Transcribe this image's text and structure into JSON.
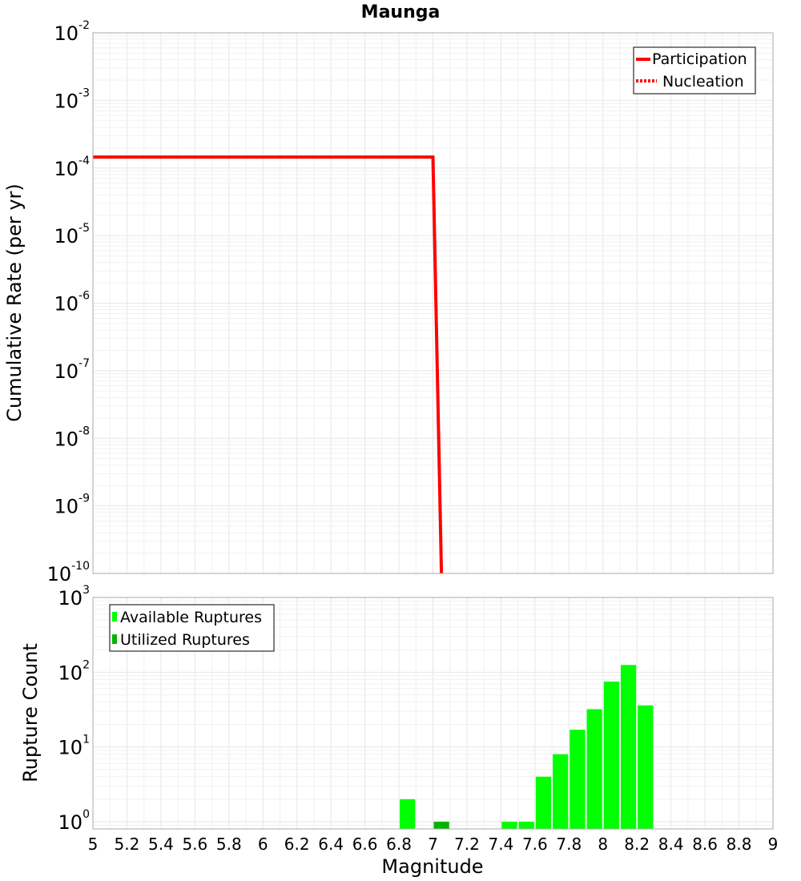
{
  "chart_data": [
    {
      "type": "line",
      "title": "Maunga",
      "xlabel": "",
      "ylabel": "Cumulative Rate (per yr)",
      "yscale": "log",
      "xlim": [
        5,
        9
      ],
      "ylim": [
        1e-10,
        0.01
      ],
      "y_ticks": [
        {
          "base": "10",
          "exp": "-2",
          "value": 0.01
        },
        {
          "base": "10",
          "exp": "-3",
          "value": 0.001
        },
        {
          "base": "10",
          "exp": "-4",
          "value": 0.0001
        },
        {
          "base": "10",
          "exp": "-5",
          "value": 1e-05
        },
        {
          "base": "10",
          "exp": "-6",
          "value": 1e-06
        },
        {
          "base": "10",
          "exp": "-7",
          "value": 1e-07
        },
        {
          "base": "10",
          "exp": "-8",
          "value": 1e-08
        },
        {
          "base": "10",
          "exp": "-9",
          "value": 1e-09
        },
        {
          "base": "10",
          "exp": "-10",
          "value": 1e-10
        }
      ],
      "legend_position": "top-right",
      "series": [
        {
          "name": "Participation",
          "style": "solid",
          "color": "#ff0000",
          "x": [
            5.0,
            7.0,
            7.05
          ],
          "y": [
            0.000145,
            0.000145,
            1e-10
          ]
        },
        {
          "name": "Nucleation",
          "style": "dotted",
          "color": "#ff0000",
          "x": [
            5.0,
            7.0,
            7.05
          ],
          "y": [
            0.000145,
            0.000145,
            1e-10
          ]
        }
      ]
    },
    {
      "type": "bar",
      "xlabel": "Magnitude",
      "ylabel": "Rupture Count",
      "yscale": "log",
      "xlim": [
        5,
        9
      ],
      "ylim": [
        0.8,
        1000
      ],
      "x_ticks": [
        "5",
        "5.2",
        "5.4",
        "5.6",
        "5.8",
        "6",
        "6.2",
        "6.4",
        "6.6",
        "6.8",
        "7",
        "7.2",
        "7.4",
        "7.6",
        "7.8",
        "8",
        "8.2",
        "8.4",
        "8.6",
        "8.8",
        "9"
      ],
      "y_ticks": [
        {
          "base": "10",
          "exp": "0",
          "value": 1
        },
        {
          "base": "10",
          "exp": "1",
          "value": 10
        },
        {
          "base": "10",
          "exp": "2",
          "value": 100
        },
        {
          "base": "10",
          "exp": "3",
          "value": 1000
        }
      ],
      "bin_width": 0.1,
      "legend_position": "top-left",
      "series": [
        {
          "name": "Available Ruptures",
          "color": "#00ff00",
          "x": [
            6.85,
            7.45,
            7.55,
            7.65,
            7.75,
            7.85,
            7.95,
            8.05,
            8.15,
            8.25
          ],
          "values": [
            2,
            1,
            1,
            4,
            8,
            17,
            32,
            75,
            125,
            36
          ]
        },
        {
          "name": "Utilized Ruptures",
          "color": "#00b400",
          "x": [
            7.05
          ],
          "values": [
            1
          ]
        }
      ]
    }
  ]
}
